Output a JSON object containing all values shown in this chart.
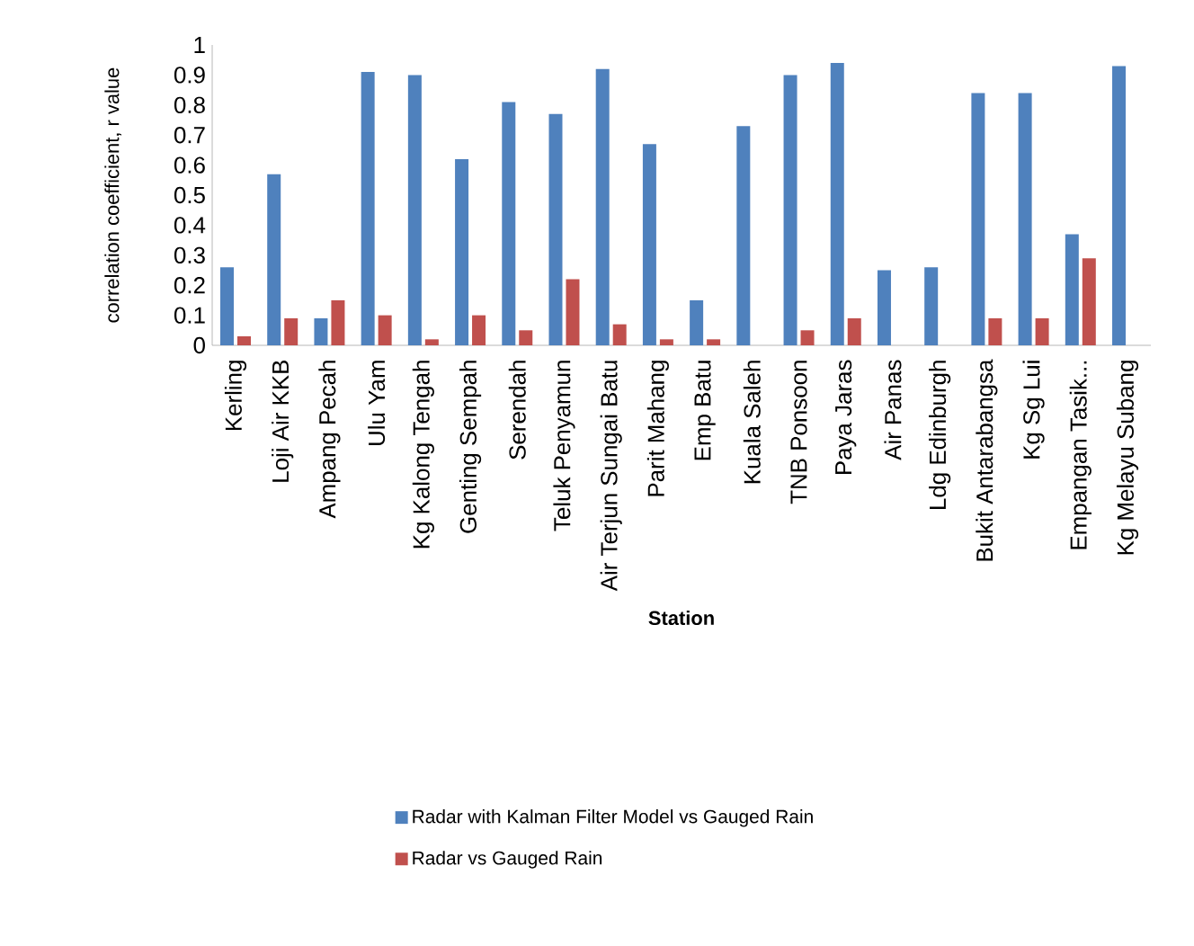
{
  "chart_data": {
    "type": "bar",
    "xlabel": "Station",
    "ylabel": "correlation coefficient, r value",
    "categories": [
      "Kerling",
      "Loji Air KKB",
      "Ampang Pecah",
      "Ulu Yam",
      "Kg Kalong Tengah",
      "Genting Sempah",
      "Serendah",
      "Teluk Penyamun",
      "Air Terjun Sungai Batu",
      "Parit Mahang",
      "Emp Batu",
      "Kuala Saleh",
      "TNB Ponsoon",
      "Paya Jaras",
      "Air Panas",
      "Ldg Edinburgh",
      "Bukit Antarabangsa",
      "Kg Sg Lui",
      "Empangan Tasik...",
      "Kg Melayu Subang"
    ],
    "series": [
      {
        "name": "Radar with Kalman Filter Model vs Gauged Rain",
        "color": "#4f81bd",
        "values": [
          0.26,
          0.57,
          0.09,
          0.91,
          0.9,
          0.62,
          0.81,
          0.77,
          0.92,
          0.67,
          0.15,
          0.73,
          0.9,
          0.94,
          0.25,
          0.26,
          0.84,
          0.84,
          0.37,
          0.93
        ]
      },
      {
        "name": "Radar vs Gauged Rain",
        "color": "#c0504d",
        "values": [
          0.03,
          0.09,
          0.15,
          0.1,
          0.02,
          0.1,
          0.05,
          0.22,
          0.07,
          0.02,
          0.02,
          null,
          0.05,
          0.09,
          null,
          null,
          0.09,
          0.09,
          0.29,
          null
        ]
      }
    ],
    "ylim": [
      0,
      1
    ],
    "yticks": [
      0,
      0.1,
      0.2,
      0.3,
      0.4,
      0.5,
      0.6,
      0.7,
      0.8,
      0.9,
      1
    ],
    "legend": "bottom",
    "grid": false
  }
}
